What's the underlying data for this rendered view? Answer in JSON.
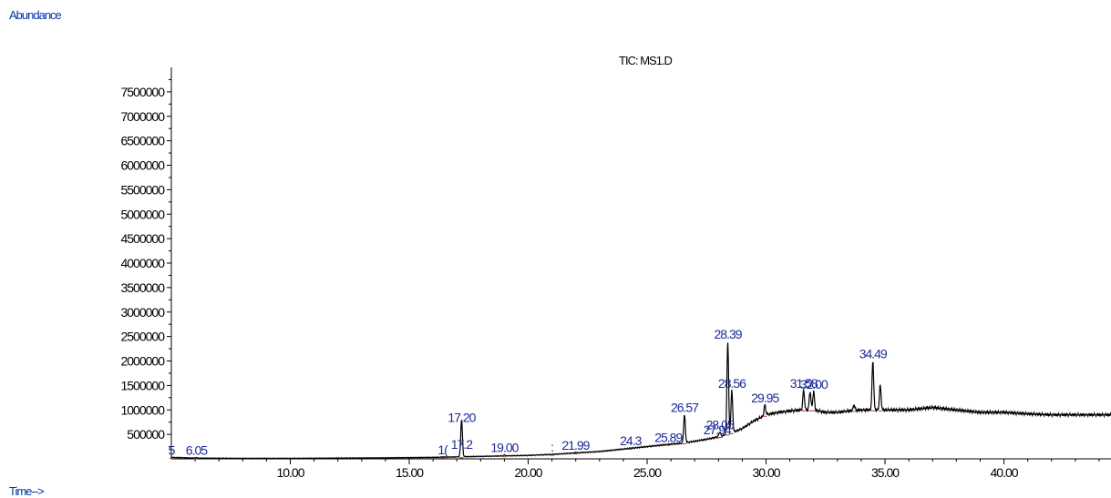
{
  "y_axis_label": "Abundance",
  "x_axis_label": "Time-->",
  "chart_data": {
    "type": "line",
    "title": "TIC: MS1.D",
    "xlabel": "Time-->",
    "ylabel": "Abundance",
    "xlim": [
      5.0,
      44.5
    ],
    "ylim": [
      0,
      8000000
    ],
    "x_ticks": [
      10,
      15,
      20,
      25,
      30,
      35,
      40
    ],
    "x_tick_labels": [
      "10.00",
      "15.00",
      "20.00",
      "25.00",
      "30.00",
      "35.00",
      "40.00"
    ],
    "y_ticks": [
      500000,
      1000000,
      1500000,
      2000000,
      2500000,
      3000000,
      3500000,
      4000000,
      4500000,
      5000000,
      5500000,
      6000000,
      6500000,
      7000000,
      7500000
    ],
    "y_tick_labels": [
      "500000",
      "1000000",
      "1500000",
      "2000000",
      "2500000",
      "3000000",
      "3500000",
      "4000000",
      "4500000",
      "5000000",
      "5500000",
      "6000000",
      "6500000",
      "7000000",
      "7500000"
    ],
    "grid": false,
    "baseline": {
      "x": [
        5.0,
        6.0,
        8.0,
        10.0,
        12.0,
        14.0,
        15.0,
        16.0,
        17.0,
        18.0,
        19.0,
        20.0,
        21.0,
        22.0,
        23.0,
        24.0,
        25.0,
        26.0,
        26.5,
        27.0,
        27.5,
        28.0,
        28.5,
        29.0,
        29.5,
        30.0,
        30.5,
        31.0,
        31.5,
        32.0,
        32.5,
        33.0,
        33.5,
        34.0,
        35.0,
        36.0,
        37.0,
        38.0,
        39.0,
        40.0,
        41.0,
        42.0,
        43.0,
        44.5
      ],
      "y": [
        30000,
        15000,
        10000,
        10000,
        15000,
        20000,
        25000,
        30000,
        40000,
        50000,
        60000,
        70000,
        90000,
        120000,
        150000,
        200000,
        250000,
        300000,
        320000,
        360000,
        400000,
        450000,
        520000,
        620000,
        780000,
        900000,
        950000,
        980000,
        1000000,
        1000000,
        950000,
        950000,
        980000,
        1000000,
        1000000,
        1000000,
        1050000,
        1000000,
        950000,
        950000,
        920000,
        900000,
        900000,
        900000
      ]
    },
    "peaks": [
      {
        "rt": 5.0,
        "height": 30000,
        "label": "5"
      },
      {
        "rt": 6.05,
        "height": 25000,
        "label": "6.05"
      },
      {
        "rt": 16.4,
        "height": 40000,
        "label": "1("
      },
      {
        "rt": 17.2,
        "height": 150000,
        "label": "17.2"
      },
      {
        "rt": 17.2,
        "height": 700000,
        "label": "17.20"
      },
      {
        "rt": 19.0,
        "height": 80000,
        "label": "19.00"
      },
      {
        "rt": 21.0,
        "height": 90000,
        "label": ":"
      },
      {
        "rt": 21.99,
        "height": 130000,
        "label": "21.99"
      },
      {
        "rt": 24.3,
        "height": 220000,
        "label": "24.3"
      },
      {
        "rt": 25.89,
        "height": 290000,
        "label": "25.89"
      },
      {
        "rt": 26.57,
        "height": 900000,
        "label": "26.57"
      },
      {
        "rt": 27.94,
        "height": 450000,
        "label": "27.94"
      },
      {
        "rt": 28.05,
        "height": 550000,
        "label": "28.05"
      },
      {
        "rt": 28.39,
        "height": 2400000,
        "label": "28.39"
      },
      {
        "rt": 28.56,
        "height": 1400000,
        "label": "28.56"
      },
      {
        "rt": 29.95,
        "height": 1100000,
        "label": "29.95"
      },
      {
        "rt": 31.58,
        "height": 1400000,
        "label": "31.58"
      },
      {
        "rt": 31.85,
        "height": 1380000,
        "label": ""
      },
      {
        "rt": 32.0,
        "height": 1380000,
        "label": "32.00"
      },
      {
        "rt": 33.7,
        "height": 1100000,
        "label": ""
      },
      {
        "rt": 34.49,
        "height": 2000000,
        "label": "34.49"
      },
      {
        "rt": 34.8,
        "height": 1500000,
        "label": ""
      }
    ]
  },
  "colors": {
    "trace": "#000000",
    "peak_label": "#1a2a9a",
    "axis_label": "#0033aa"
  }
}
